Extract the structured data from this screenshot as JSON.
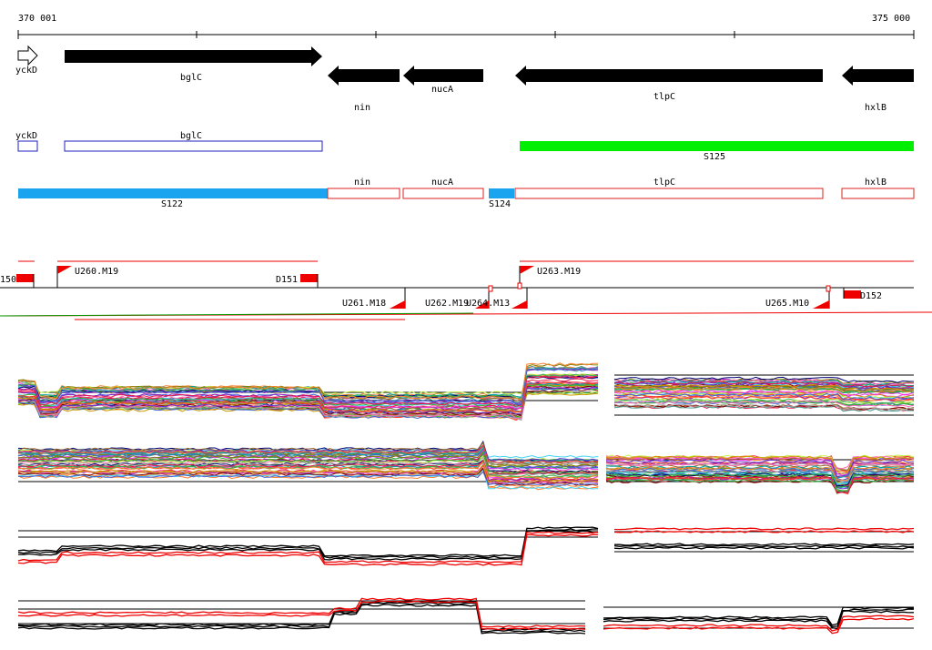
{
  "ruler": {
    "start_label": "370 001",
    "end_label": "375 000"
  },
  "genes": [
    {
      "name": "yckD",
      "strand": "+"
    },
    {
      "name": "bglC",
      "strand": "+"
    },
    {
      "name": "nin",
      "strand": "-"
    },
    {
      "name": "nucA",
      "strand": "-"
    },
    {
      "name": "tlpC",
      "strand": "-"
    },
    {
      "name": "hxlB",
      "strand": "-"
    }
  ],
  "transcript_units": [
    {
      "name": "yckD",
      "color": "#1f1fbf"
    },
    {
      "name": "bglC",
      "color": "#1f1fbf"
    },
    {
      "name": "S125",
      "color": "#00ee00"
    },
    {
      "name": "nin",
      "color": "#dd2222"
    },
    {
      "name": "nucA",
      "color": "#dd2222"
    },
    {
      "name": "tlpC",
      "color": "#dd2222"
    },
    {
      "name": "hxlB",
      "color": "#dd2222"
    },
    {
      "name": "S122",
      "color": "#1aa3ef"
    },
    {
      "name": "S124",
      "color": "#1aa3ef"
    }
  ],
  "features_top": [
    {
      "name": "150"
    },
    {
      "name": "U260.M19"
    },
    {
      "name": "D151"
    },
    {
      "name": "U263.M19"
    }
  ],
  "features_bottom": [
    {
      "name": "U261.M18"
    },
    {
      "name": "U262.M19"
    },
    {
      "name": "U264.M13"
    },
    {
      "name": "U265.M10"
    },
    {
      "name": "D152"
    }
  ],
  "colors": {
    "gene_fill": "#000000",
    "feature_red": "#ee0000",
    "axis": "#000000"
  }
}
